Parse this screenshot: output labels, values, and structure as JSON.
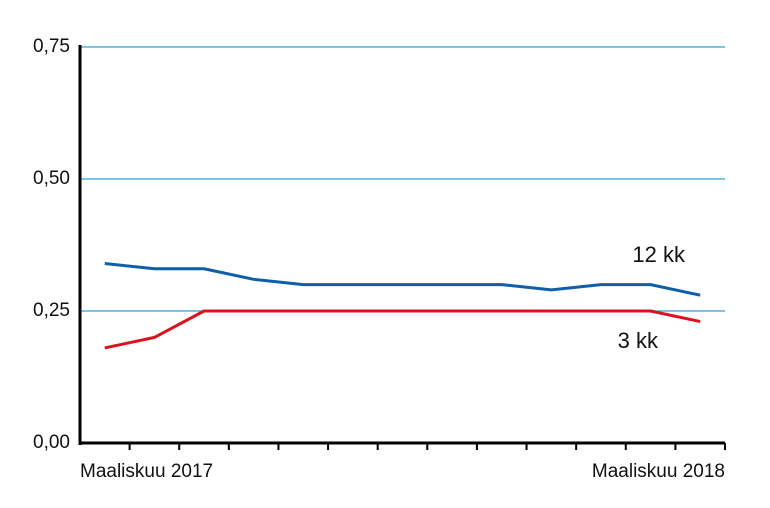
{
  "chart_data": {
    "type": "line",
    "categories": [
      "Maaliskuu 2017",
      null,
      null,
      null,
      null,
      null,
      null,
      null,
      null,
      null,
      null,
      null,
      "Maaliskuu 2018"
    ],
    "series": [
      {
        "name": "12 kk",
        "color": "#0f5fa8",
        "values": [
          0.34,
          0.33,
          0.33,
          0.31,
          0.3,
          0.3,
          0.3,
          0.3,
          0.3,
          0.29,
          0.3,
          0.3,
          0.28
        ]
      },
      {
        "name": "3 kk",
        "color": "#d7141f",
        "values": [
          0.18,
          0.2,
          0.25,
          0.25,
          0.25,
          0.25,
          0.25,
          0.25,
          0.25,
          0.25,
          0.25,
          0.25,
          0.23
        ]
      }
    ],
    "ylim": [
      0,
      0.75
    ],
    "yticks": [
      {
        "value": 0,
        "label": "0,00"
      },
      {
        "value": 0.25,
        "label": "0,25"
      },
      {
        "value": 0.5,
        "label": "0,50"
      },
      {
        "value": 0.75,
        "label": "0,75"
      }
    ],
    "grid": true,
    "grid_color": "#29a3d9"
  }
}
